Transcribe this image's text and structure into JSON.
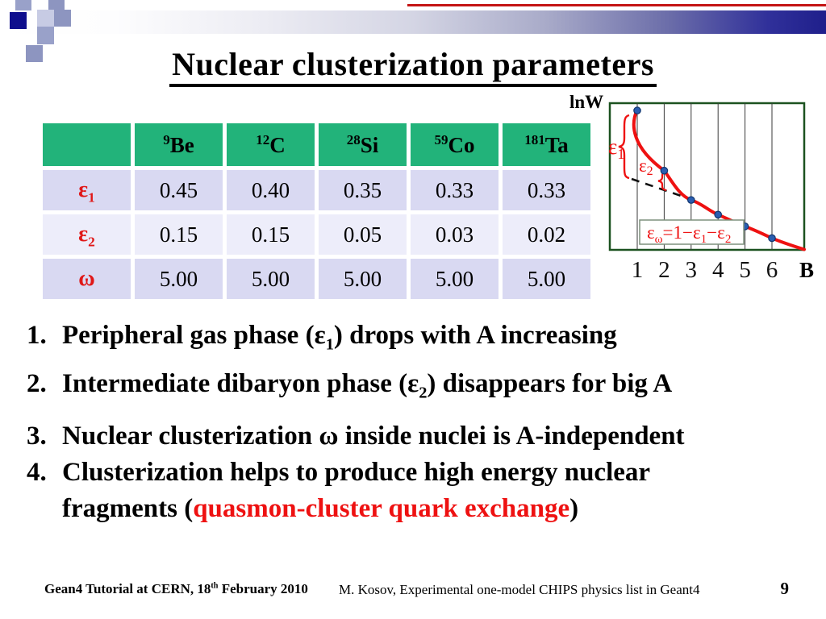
{
  "title": {
    "text": "Nuclear clusterization parameters"
  },
  "decor": {
    "top_bar_color_right": "#1f1f8b",
    "red_line_color": "#c41414",
    "mosaic_navy": "#0e0e8d",
    "mosaic_slate": "#8d95c0",
    "mosaic_periwinkle": "#99a1c9",
    "mosaic_light": "#c7cbe4"
  },
  "table": {
    "columns": [
      {
        "mass": "9",
        "symbol": "Be"
      },
      {
        "mass": "12",
        "symbol": "C"
      },
      {
        "mass": "28",
        "symbol": "Si"
      },
      {
        "mass": "59",
        "symbol": "Co"
      },
      {
        "mass": "181",
        "symbol": "Ta"
      }
    ],
    "rows": [
      {
        "name": "epsilon1",
        "label": "ε",
        "sub": "1",
        "values": [
          "0.45",
          "0.40",
          "0.35",
          "0.33",
          "0.33"
        ]
      },
      {
        "name": "epsilon2",
        "label": "ε",
        "sub": "2",
        "values": [
          "0.15",
          "0.15",
          "0.05",
          "0.03",
          "0.02"
        ]
      },
      {
        "name": "omega",
        "label": "ω",
        "sub": "",
        "values": [
          "5.00",
          "5.00",
          "5.00",
          "5.00",
          "5.00"
        ]
      }
    ],
    "header_bg": "#22b37a",
    "row_bg": "#d9d9f2",
    "row_bg_alt": "#ededfa",
    "label_color": "#e01818"
  },
  "chart_data": {
    "type": "line",
    "title": "",
    "xlabel": "B",
    "ylabel": "lnW",
    "x": [
      1,
      2,
      3,
      4,
      5,
      6
    ],
    "x_ticks": [
      "1",
      "2",
      "3",
      "4",
      "5",
      "6"
    ],
    "lnw_relative": [
      0.95,
      0.54,
      0.34,
      0.24,
      0.16,
      0.08
    ],
    "y_axis_ticks": "none",
    "grid": "vertical-only",
    "curve_color": "#ee1111",
    "point_color": "#2a5db0",
    "frame_color": "#1c5220",
    "annotations": {
      "eps1": "ε",
      "eps1_sub": "1",
      "eps2": "ε",
      "eps2_sub": "2",
      "formula_plain": "εω=1−ε1−ε2",
      "formula_parts": {
        "p1": "ε",
        "p2": "ω",
        "p3": "=1−",
        "p4": "ε",
        "p5": "1",
        "p6": "−",
        "p7": "ε",
        "p8": "2"
      }
    }
  },
  "bullets": [
    {
      "num": "1.",
      "pre": "Peripheral gas phase (",
      "sym": "ε",
      "sub": "1",
      "post": ") drops with A increasing"
    },
    {
      "num": "2.",
      "pre": "Intermediate dibaryon phase (",
      "sym": "ε",
      "sub": "2",
      "post": ") disappears for big A"
    },
    {
      "num": "3.",
      "pre": "Nuclear clusterization ω inside nuclei is A-independent",
      "sym": "",
      "sub": "",
      "post": ""
    },
    {
      "num": "4.",
      "line1": "Clusterization helps to produce high energy nuclear",
      "line2_pre": "fragments (",
      "line2_red": "quasmon-cluster quark exchange",
      "line2_post": ")",
      "red_color": "#ee1111"
    }
  ],
  "footer": {
    "left_pre": "Gean4 Tutorial at CERN, 18",
    "left_sup": "th",
    "left_post": " February 2010",
    "center": "M. Kosov,  Experimental one-model CHIPS physics list in Geant4",
    "page_number": "9"
  }
}
